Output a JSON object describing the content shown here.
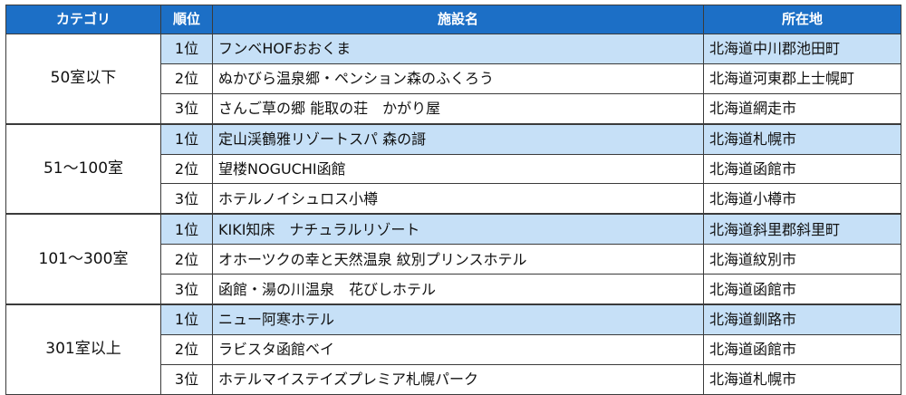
{
  "headers": {
    "category": "カテゴリ",
    "rank": "順位",
    "facility": "施設名",
    "location": "所在地"
  },
  "groups": [
    {
      "category": "50室以下",
      "rows": [
        {
          "rank": "1位",
          "facility": "フンベHOFおおくま",
          "location": "北海道中川郡池田町"
        },
        {
          "rank": "2位",
          "facility": "ぬかびら温泉郷・ペンション森のふくろう",
          "location": "北海道河東郡上士幌町"
        },
        {
          "rank": "3位",
          "facility": "さんご草の郷 能取の荘　かがり屋",
          "location": "北海道網走市"
        }
      ]
    },
    {
      "category": "51～100室",
      "rows": [
        {
          "rank": "1位",
          "facility": "定山渓鶴雅リゾートスパ 森の謌",
          "location": "北海道札幌市"
        },
        {
          "rank": "2位",
          "facility": "望楼NOGUCHI函館",
          "location": "北海道函館市"
        },
        {
          "rank": "3位",
          "facility": "ホテルノイシュロス小樽",
          "location": "北海道小樽市"
        }
      ]
    },
    {
      "category": "101～300室",
      "rows": [
        {
          "rank": "1位",
          "facility": "KIKI知床　ナチュラルリゾート",
          "location": "北海道斜里郡斜里町"
        },
        {
          "rank": "2位",
          "facility": "オホーツクの幸と天然温泉 紋別プリンスホテル",
          "location": "北海道紋別市"
        },
        {
          "rank": "3位",
          "facility": "函館・湯の川温泉　花びしホテル",
          "location": "北海道函館市"
        }
      ]
    },
    {
      "category": "301室以上",
      "rows": [
        {
          "rank": "1位",
          "facility": "ニュー阿寒ホテル",
          "location": "北海道釧路市"
        },
        {
          "rank": "2位",
          "facility": "ラビスタ函館ベイ",
          "location": "北海道函館市"
        },
        {
          "rank": "3位",
          "facility": "ホテルマイステイズプレミア札幌パーク",
          "location": "北海道札幌市"
        }
      ]
    }
  ],
  "colors": {
    "header_bg": "#1c6fc6",
    "highlight_bg": "#c6e0f7",
    "border": "#3b3b3b"
  }
}
